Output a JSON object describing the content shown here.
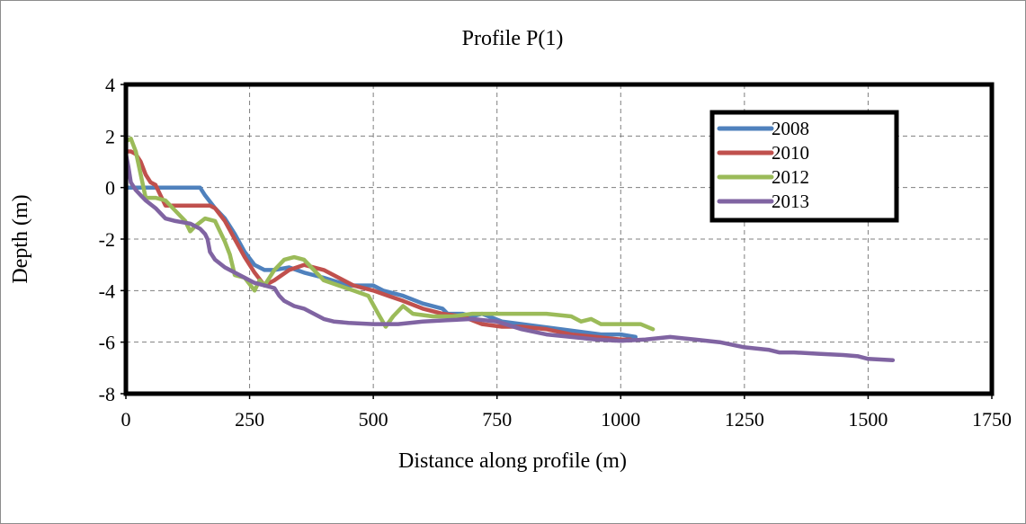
{
  "chart_data": {
    "type": "line",
    "title": "Profile P(1)",
    "xlabel": "Distance along profile (m)",
    "ylabel": "Depth (m)",
    "xlim": [
      0,
      1750
    ],
    "ylim": [
      -8,
      4
    ],
    "x_ticks": [
      0,
      250,
      500,
      750,
      1000,
      1250,
      1500,
      1750
    ],
    "y_ticks": [
      4,
      2,
      0,
      -2,
      -4,
      -6,
      -8
    ],
    "grid": true,
    "legend_position": "top-right",
    "series": [
      {
        "name": "2008",
        "color": "#4f81bd",
        "x": [
          0,
          20,
          60,
          100,
          140,
          150,
          160,
          180,
          200,
          220,
          240,
          260,
          280,
          300,
          330,
          360,
          400,
          450,
          500,
          520,
          540,
          560,
          600,
          640,
          650,
          680,
          700,
          720,
          760,
          800,
          840,
          880,
          920,
          960,
          1000,
          1030
        ],
        "y": [
          0,
          0,
          0,
          0,
          0,
          0,
          -0.3,
          -0.8,
          -1.2,
          -1.8,
          -2.5,
          -3.0,
          -3.2,
          -3.2,
          -3.1,
          -3.3,
          -3.5,
          -3.8,
          -3.8,
          -4.0,
          -4.1,
          -4.2,
          -4.5,
          -4.7,
          -4.9,
          -4.9,
          -5.0,
          -4.9,
          -5.2,
          -5.3,
          -5.4,
          -5.5,
          -5.6,
          -5.7,
          -5.7,
          -5.8
        ]
      },
      {
        "name": "2010",
        "color": "#c0504d",
        "x": [
          0,
          10,
          20,
          30,
          40,
          50,
          60,
          70,
          80,
          100,
          120,
          150,
          170,
          180,
          200,
          220,
          240,
          260,
          280,
          300,
          330,
          360,
          400,
          430,
          460,
          500,
          530,
          560,
          600,
          640,
          680,
          720,
          760,
          800,
          850,
          900,
          950,
          1000,
          1020
        ],
        "y": [
          1.4,
          1.4,
          1.3,
          1.0,
          0.5,
          0.2,
          0.1,
          -0.3,
          -0.7,
          -0.7,
          -0.7,
          -0.7,
          -0.7,
          -0.8,
          -1.3,
          -2.0,
          -2.7,
          -3.3,
          -3.8,
          -3.6,
          -3.2,
          -3.0,
          -3.2,
          -3.5,
          -3.8,
          -4.0,
          -4.2,
          -4.4,
          -4.7,
          -4.9,
          -5.0,
          -5.3,
          -5.4,
          -5.4,
          -5.5,
          -5.7,
          -5.8,
          -5.9,
          -5.9
        ]
      },
      {
        "name": "2012",
        "color": "#9bbb59",
        "x": [
          0,
          10,
          20,
          30,
          40,
          60,
          80,
          100,
          120,
          130,
          140,
          160,
          180,
          190,
          200,
          210,
          220,
          240,
          260,
          270,
          280,
          300,
          320,
          340,
          360,
          380,
          400,
          430,
          460,
          490,
          510,
          525,
          540,
          560,
          580,
          620,
          660,
          700,
          750,
          800,
          850,
          900,
          920,
          940,
          960,
          1000,
          1040,
          1065
        ],
        "y": [
          1.8,
          1.9,
          1.4,
          0.5,
          -0.4,
          -0.4,
          -0.5,
          -0.9,
          -1.3,
          -1.7,
          -1.5,
          -1.2,
          -1.3,
          -1.7,
          -2.1,
          -2.6,
          -3.4,
          -3.5,
          -4.0,
          -3.6,
          -3.8,
          -3.2,
          -2.8,
          -2.7,
          -2.8,
          -3.2,
          -3.6,
          -3.8,
          -4.0,
          -4.2,
          -4.9,
          -5.4,
          -5.0,
          -4.6,
          -4.9,
          -5.0,
          -5.0,
          -4.9,
          -4.9,
          -4.9,
          -4.9,
          -5.0,
          -5.2,
          -5.1,
          -5.3,
          -5.3,
          -5.3,
          -5.5
        ]
      },
      {
        "name": "2013",
        "color": "#8064a2",
        "x": [
          0,
          5,
          10,
          20,
          30,
          40,
          60,
          80,
          100,
          130,
          150,
          160,
          165,
          170,
          180,
          200,
          220,
          240,
          260,
          280,
          300,
          310,
          320,
          340,
          360,
          380,
          400,
          420,
          450,
          500,
          550,
          600,
          650,
          700,
          750,
          800,
          850,
          900,
          950,
          1000,
          1050,
          1100,
          1150,
          1200,
          1250,
          1300,
          1320,
          1350,
          1400,
          1450,
          1480,
          1500,
          1550
        ],
        "y": [
          1.3,
          0.8,
          0.2,
          -0.1,
          -0.3,
          -0.5,
          -0.8,
          -1.2,
          -1.3,
          -1.4,
          -1.6,
          -1.8,
          -2.0,
          -2.5,
          -2.8,
          -3.1,
          -3.3,
          -3.5,
          -3.7,
          -3.8,
          -3.9,
          -4.2,
          -4.4,
          -4.6,
          -4.7,
          -4.9,
          -5.1,
          -5.2,
          -5.25,
          -5.3,
          -5.3,
          -5.2,
          -5.15,
          -5.1,
          -5.2,
          -5.5,
          -5.7,
          -5.8,
          -5.9,
          -5.95,
          -5.9,
          -5.8,
          -5.9,
          -6.0,
          -6.2,
          -6.3,
          -6.4,
          -6.4,
          -6.45,
          -6.5,
          -6.55,
          -6.65,
          -6.7
        ]
      }
    ]
  }
}
